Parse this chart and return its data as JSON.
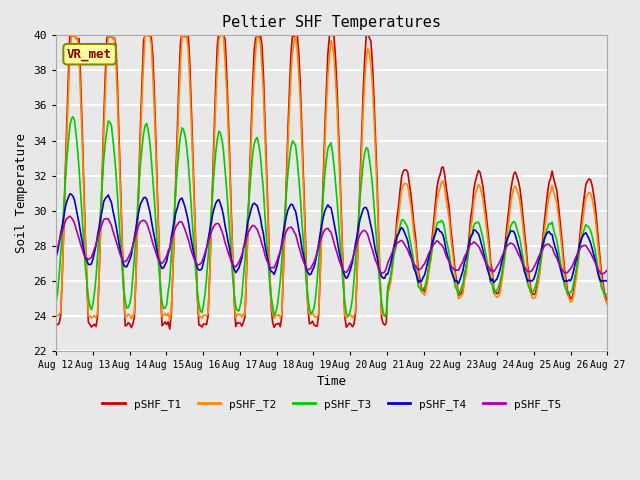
{
  "title": "Peltier SHF Temperatures",
  "xlabel": "Time",
  "ylabel": "Soil Temperature",
  "ylim": [
    22,
    40
  ],
  "yticks": [
    22,
    24,
    26,
    28,
    30,
    32,
    34,
    36,
    38,
    40
  ],
  "xlim_days": [
    0,
    15
  ],
  "date_labels": [
    "Aug 12",
    "Aug 13",
    "Aug 14",
    "Aug 15",
    "Aug 16",
    "Aug 17",
    "Aug 18",
    "Aug 19",
    "Aug 20",
    "Aug 21",
    "Aug 22",
    "Aug 23",
    "Aug 24",
    "Aug 25",
    "Aug 26",
    "Aug 27"
  ],
  "annotation_text": "VR_met",
  "series_colors": {
    "pSHF_T1": "#cc0000",
    "pSHF_T2": "#ff8800",
    "pSHF_T3": "#00cc00",
    "pSHF_T4": "#0000cc",
    "pSHF_T5": "#aa00aa"
  },
  "legend_labels": [
    "pSHF_T1",
    "pSHF_T2",
    "pSHF_T3",
    "pSHF_T4",
    "pSHF_T5"
  ],
  "bg_color": "#e8e8e8",
  "plot_bg_color": "#e8e8e8",
  "grid_color": "#ffffff",
  "font_family": "monospace"
}
